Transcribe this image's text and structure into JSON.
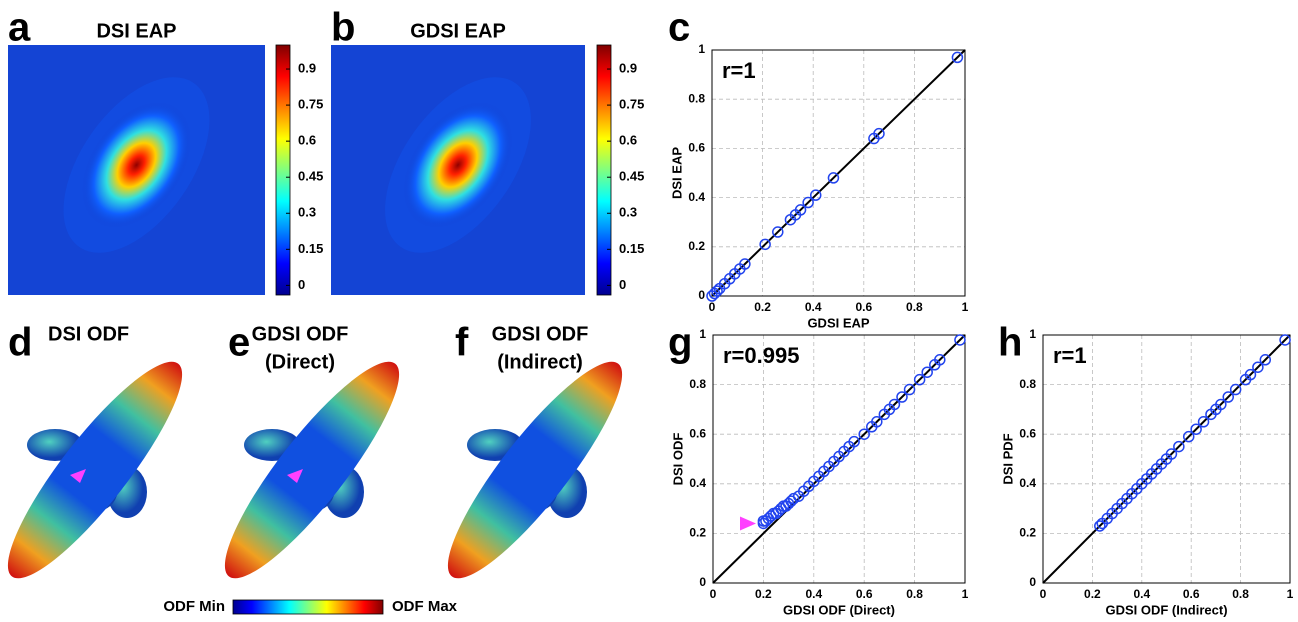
{
  "chart_data": [
    {
      "type": "heatmap",
      "label": "a",
      "title": "DSI EAP",
      "colormap": "jet",
      "clim": [
        -0.04,
        1
      ],
      "cticks": [
        0,
        0.15,
        0.3,
        0.45,
        0.6,
        0.75,
        0.9
      ]
    },
    {
      "type": "heatmap",
      "label": "b",
      "title": "GDSI EAP",
      "colormap": "jet",
      "clim": [
        -0.04,
        1
      ],
      "cticks": [
        0,
        0.15,
        0.3,
        0.45,
        0.6,
        0.75,
        0.9
      ]
    },
    {
      "type": "scatter",
      "label": "c",
      "annotation": "r=1",
      "xlabel": "GDSI EAP",
      "ylabel": "DSI EAP",
      "xlim": [
        0,
        1
      ],
      "ylim": [
        0,
        1
      ],
      "xticks": [
        0,
        0.2,
        0.4,
        0.6,
        0.8,
        1
      ],
      "yticks": [
        0,
        0.2,
        0.4,
        0.6,
        0.8,
        1
      ],
      "grid": true,
      "color": "#2244ee",
      "x": [
        0.97,
        0.66,
        0.64,
        0.48,
        0.41,
        0.38,
        0.35,
        0.33,
        0.31,
        0.26,
        0.21,
        0.13,
        0.11,
        0.09,
        0.07,
        0.05,
        0.03,
        0.02,
        0.01,
        0
      ],
      "y": [
        0.97,
        0.66,
        0.64,
        0.48,
        0.41,
        0.38,
        0.35,
        0.33,
        0.31,
        0.26,
        0.21,
        0.13,
        0.11,
        0.09,
        0.07,
        0.05,
        0.03,
        0.02,
        0.01,
        0
      ]
    },
    {
      "type": "odf",
      "label": "d",
      "title": [
        "DSI ODF"
      ],
      "arrow": true
    },
    {
      "type": "odf",
      "label": "e",
      "title": [
        "GDSI ODF",
        "(Direct)"
      ],
      "arrow": true
    },
    {
      "type": "odf",
      "label": "f",
      "title": [
        "GDSI ODF",
        "(Indirect)"
      ],
      "arrow": false
    },
    {
      "type": "scatter",
      "label": "g",
      "annotation": "r=0.995",
      "xlabel": "GDSI ODF (Direct)",
      "ylabel": "DSI ODF",
      "xlim": [
        0,
        1
      ],
      "ylim": [
        0,
        1
      ],
      "xticks": [
        0,
        0.2,
        0.4,
        0.6,
        0.8,
        1
      ],
      "yticks": [
        0,
        0.2,
        0.4,
        0.6,
        0.8,
        1
      ],
      "grid": true,
      "color": "#2244ee",
      "arrow": true,
      "x": [
        0.2,
        0.2,
        0.21,
        0.22,
        0.23,
        0.24,
        0.25,
        0.26,
        0.27,
        0.28,
        0.29,
        0.3,
        0.31,
        0.32,
        0.34,
        0.36,
        0.38,
        0.4,
        0.42,
        0.44,
        0.46,
        0.48,
        0.5,
        0.52,
        0.54,
        0.56,
        0.6,
        0.63,
        0.65,
        0.68,
        0.7,
        0.72,
        0.75,
        0.78,
        0.82,
        0.85,
        0.88,
        0.9,
        0.98
      ],
      "y": [
        0.24,
        0.25,
        0.25,
        0.26,
        0.27,
        0.28,
        0.28,
        0.29,
        0.3,
        0.31,
        0.31,
        0.32,
        0.33,
        0.34,
        0.35,
        0.37,
        0.39,
        0.41,
        0.43,
        0.45,
        0.47,
        0.49,
        0.51,
        0.53,
        0.55,
        0.57,
        0.6,
        0.63,
        0.65,
        0.68,
        0.7,
        0.72,
        0.75,
        0.78,
        0.82,
        0.85,
        0.88,
        0.9,
        0.98
      ]
    },
    {
      "type": "scatter",
      "label": "h",
      "annotation": "r=1",
      "xlabel": "GDSI ODF (Indirect)",
      "ylabel": "DSI PDF",
      "xlim": [
        0,
        1
      ],
      "ylim": [
        0,
        1
      ],
      "xticks": [
        0,
        0.2,
        0.4,
        0.6,
        0.8,
        1
      ],
      "yticks": [
        0,
        0.2,
        0.4,
        0.6,
        0.8,
        1
      ],
      "grid": true,
      "color": "#2244ee",
      "x": [
        0.23,
        0.24,
        0.26,
        0.28,
        0.3,
        0.32,
        0.34,
        0.36,
        0.38,
        0.4,
        0.42,
        0.44,
        0.46,
        0.48,
        0.5,
        0.52,
        0.55,
        0.59,
        0.62,
        0.65,
        0.68,
        0.7,
        0.72,
        0.75,
        0.78,
        0.82,
        0.84,
        0.87,
        0.9,
        0.98
      ],
      "y": [
        0.23,
        0.24,
        0.26,
        0.28,
        0.3,
        0.32,
        0.34,
        0.36,
        0.38,
        0.4,
        0.42,
        0.44,
        0.46,
        0.48,
        0.5,
        0.52,
        0.55,
        0.59,
        0.62,
        0.65,
        0.68,
        0.7,
        0.72,
        0.75,
        0.78,
        0.82,
        0.84,
        0.87,
        0.9,
        0.98
      ]
    },
    {
      "type": "colorbar",
      "min_label": "ODF Min",
      "max_label": "ODF Max",
      "colormap": "jet"
    }
  ]
}
